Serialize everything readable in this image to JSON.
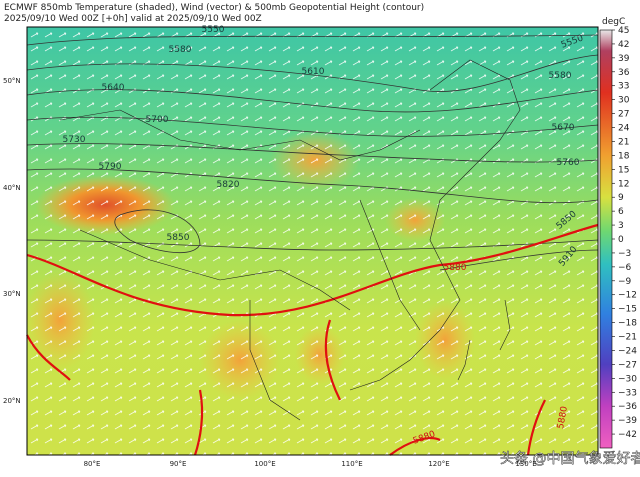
{
  "header": {
    "title": "ECMWF 850mb Temperature (shaded), Wind (vector) & 500mb Geopotential Height (contour)",
    "subtitle": "2025/09/10 Wed 00Z [+0h] valid at 2025/09/10 Wed 00Z"
  },
  "colorbar": {
    "unit": "degC",
    "range": [
      -45,
      45
    ],
    "ticks": [
      45,
      42,
      39,
      36,
      33,
      30,
      27,
      24,
      21,
      18,
      15,
      12,
      9,
      6,
      3,
      0,
      {
        "value": -3,
        "label": "−3"
      },
      {
        "value": -6,
        "label": "−6"
      },
      {
        "value": -9,
        "label": "−9"
      },
      {
        "value": -12,
        "label": "−12"
      },
      {
        "value": -15,
        "label": "−15"
      },
      {
        "value": -18,
        "label": "−18"
      },
      {
        "value": -21,
        "label": "−21"
      },
      {
        "value": -24,
        "label": "−24"
      },
      {
        "value": -27,
        "label": "−27"
      },
      {
        "value": -30,
        "label": "−30"
      },
      {
        "value": -33,
        "label": "−33"
      },
      {
        "value": -36,
        "label": "−36"
      },
      {
        "value": -39,
        "label": "−39"
      },
      {
        "value": -42,
        "label": "−42"
      }
    ]
  },
  "lat_labels": [
    "50°N",
    "40°N",
    "30°N",
    "20°N"
  ],
  "lon_labels": [
    "80°E",
    "90°E",
    "100°E",
    "110°E",
    "120°E",
    "130°E"
  ],
  "contour_labels": [
    "5550",
    "5580",
    "5610",
    "5640",
    "5700",
    "5730",
    "5790",
    "5820",
    "5850",
    "5880",
    "5550",
    "5580",
    "5670",
    "5760",
    "5850",
    "5910",
    "5880",
    "5880"
  ],
  "watermark": "头条 @中国气象爱好者"
}
